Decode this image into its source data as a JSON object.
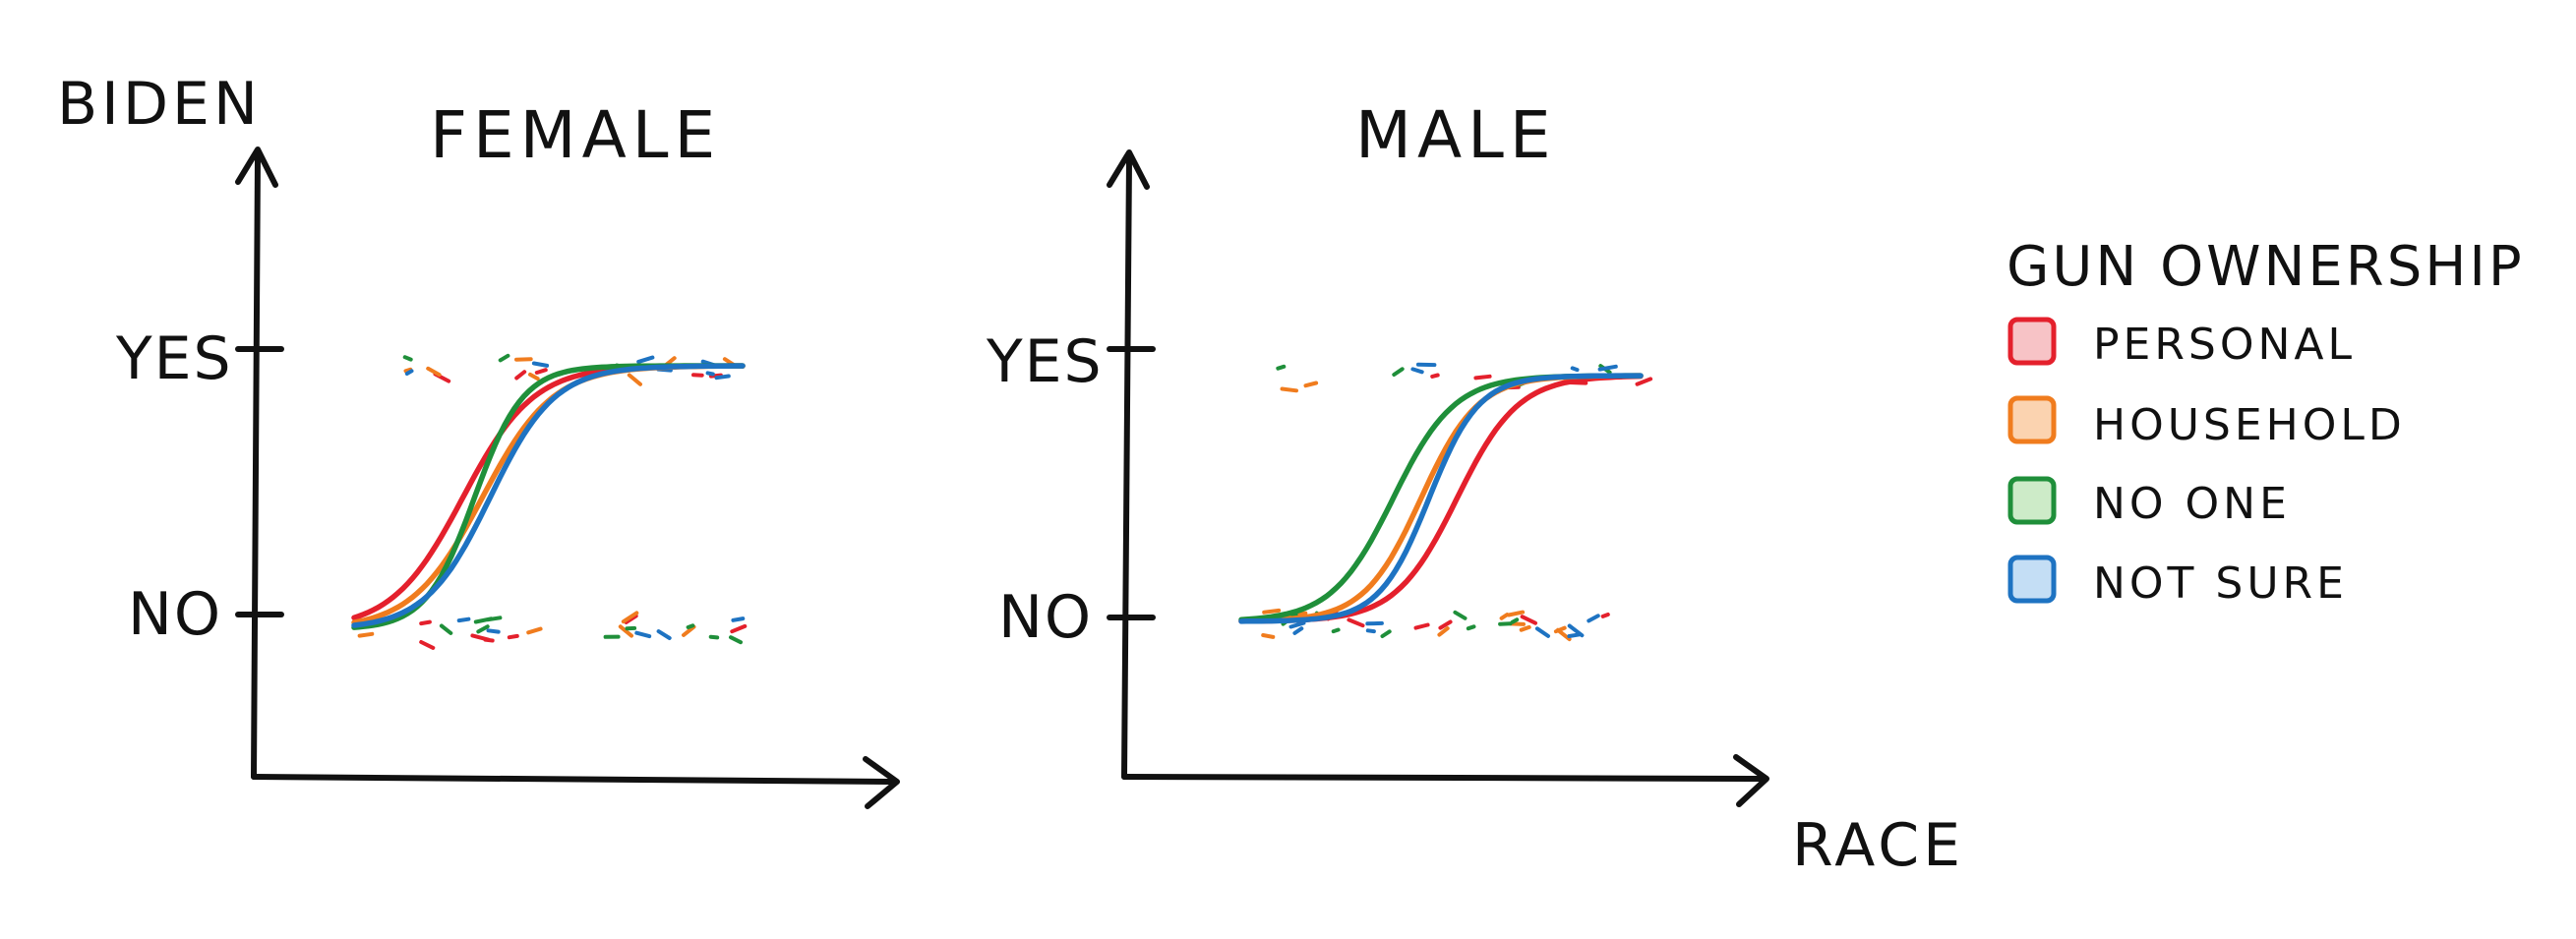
{
  "chart_data": [
    {
      "type": "line",
      "title": "FEMALE",
      "ylabel": "BIDEN",
      "xlabel": "RACE",
      "y_categories": [
        "NO",
        "YES"
      ],
      "ylim": [
        0,
        1
      ],
      "xlim": [
        0,
        1
      ],
      "grid": false,
      "series": [
        {
          "name": "PERSONAL",
          "curve": {
            "x_mid": 0.28,
            "steepness": 11
          }
        },
        {
          "name": "HOUSEHOLD",
          "curve": {
            "x_mid": 0.33,
            "steepness": 11
          }
        },
        {
          "name": "NO ONE",
          "curve": {
            "x_mid": 0.31,
            "steepness": 16
          }
        },
        {
          "name": "NOT SURE",
          "curve": {
            "x_mid": 0.35,
            "steepness": 12
          }
        }
      ]
    },
    {
      "type": "line",
      "title": "MALE",
      "ylabel": "BIDEN",
      "xlabel": "RACE",
      "y_categories": [
        "NO",
        "YES"
      ],
      "ylim": [
        0,
        1
      ],
      "xlim": [
        0,
        1
      ],
      "grid": false,
      "series": [
        {
          "name": "PERSONAL",
          "curve": {
            "x_mid": 0.54,
            "steepness": 13
          }
        },
        {
          "name": "HOUSEHOLD",
          "curve": {
            "x_mid": 0.45,
            "steepness": 14
          }
        },
        {
          "name": "NO ONE",
          "curve": {
            "x_mid": 0.38,
            "steepness": 13
          }
        },
        {
          "name": "NOT SURE",
          "curve": {
            "x_mid": 0.47,
            "steepness": 16
          }
        }
      ]
    }
  ],
  "labels": {
    "ylabel": "BIDEN",
    "xlabel": "RACE",
    "yes": "YES",
    "no": "NO",
    "female": "FEMALE",
    "male": "MALE"
  },
  "legend": {
    "title": "GUN OWNERSHIP",
    "placement": "right",
    "items": [
      {
        "label": "PERSONAL",
        "color": "#e4202c",
        "fill": "#f7c3c6"
      },
      {
        "label": "HOUSEHOLD",
        "color": "#f07c1e",
        "fill": "#fbd3b0"
      },
      {
        "label": "NO ONE",
        "color": "#1f8f3a",
        "fill": "#cdebc8"
      },
      {
        "label": "NOT SURE",
        "color": "#1e73c2",
        "fill": "#c4def5"
      }
    ]
  }
}
